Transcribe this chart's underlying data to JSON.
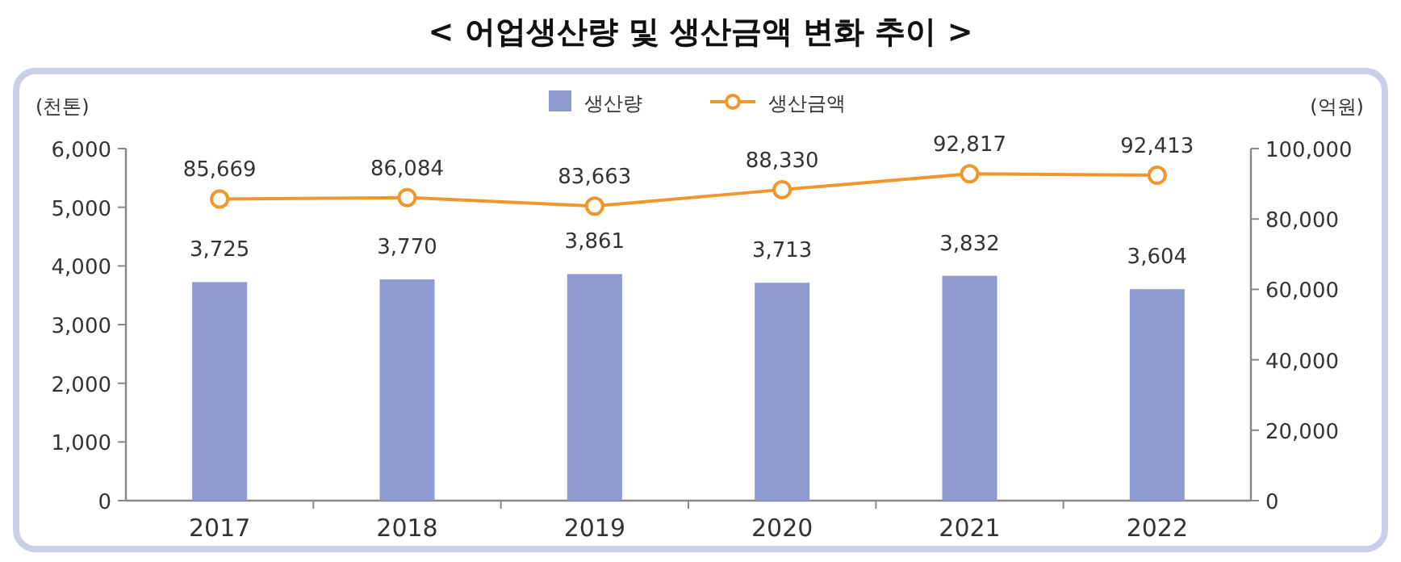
{
  "chart_data": {
    "type": "bar",
    "title": "< 어업생산량 및 생산금액 변화 추이 >",
    "ylabel": "(천톤)",
    "y2label": "(억원)",
    "categories": [
      "2017",
      "2018",
      "2019",
      "2020",
      "2021",
      "2022"
    ],
    "series": [
      {
        "name": "생산량",
        "color": "#8f9bd0",
        "values": [
          3725,
          3770,
          3861,
          3713,
          3832,
          3604
        ],
        "value_labels": [
          "3,725",
          "3,770",
          "3,861",
          "3,713",
          "3,832",
          "3,604"
        ]
      },
      {
        "name": "생산금액",
        "type": "line",
        "axis": "y2",
        "color": "#f0962a",
        "marker": "circle",
        "values": [
          85669,
          86084,
          83663,
          88330,
          92817,
          92413
        ],
        "value_labels": [
          "85,669",
          "86,084",
          "83,663",
          "88,330",
          "92,817",
          "92,413"
        ]
      }
    ],
    "ylim": [
      0,
      6000
    ],
    "yticks": [
      {
        "value": 0,
        "label": "0"
      },
      {
        "value": 1000,
        "label": "1,000"
      },
      {
        "value": 2000,
        "label": "2,000"
      },
      {
        "value": 3000,
        "label": "3,000"
      },
      {
        "value": 4000,
        "label": "4,000"
      },
      {
        "value": 5000,
        "label": "5,000"
      },
      {
        "value": 6000,
        "label": "6,000"
      }
    ],
    "y2lim": [
      0,
      100000
    ],
    "y2ticks": [
      {
        "value": 0,
        "label": "0"
      },
      {
        "value": 20000,
        "label": "20,000"
      },
      {
        "value": 40000,
        "label": "40,000"
      },
      {
        "value": 60000,
        "label": "60,000"
      },
      {
        "value": 80000,
        "label": "80,000"
      },
      {
        "value": 100000,
        "label": "100,000"
      }
    ],
    "legend": "top",
    "grid": false
  }
}
